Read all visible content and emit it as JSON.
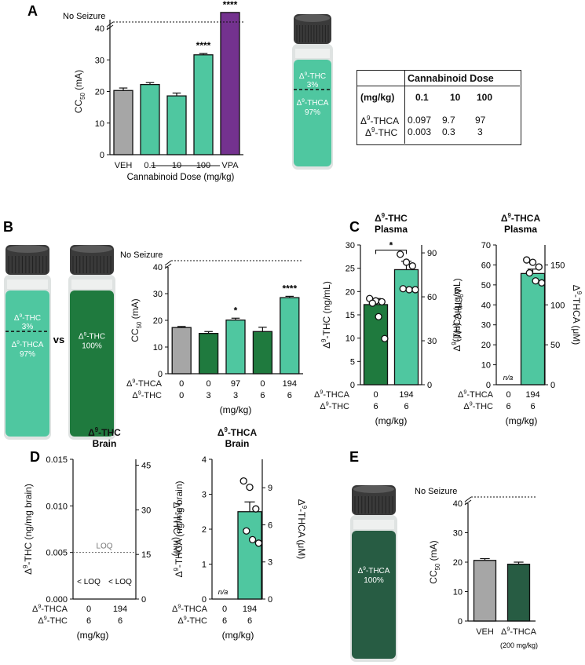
{
  "colors": {
    "veh": "#a6a6a6",
    "thca_light": "#4fc7a0",
    "thc_dark": "#1f7a3e",
    "vpa": "#74328f",
    "thca_pure_dark": "#275c43",
    "cap": "#3a3a3a"
  },
  "panels": {
    "A": {
      "letter": "A"
    },
    "B": {
      "letter": "B"
    },
    "C": {
      "letter": "C"
    },
    "D": {
      "letter": "D"
    },
    "E": {
      "letter": "E"
    }
  },
  "common": {
    "no_seizure": "No Seizure",
    "cc50_label": "CC50 (mA)",
    "mgkg": "(mg/kg)",
    "row_thca": "Δ9-THCA",
    "row_thc": "Δ9-THC",
    "vs": "vs",
    "loq": "LOQ",
    "below_loq": "< LOQ",
    "na": "n/a"
  },
  "vials": {
    "mix_top": "Δ9-THC",
    "mix_top_pct": "3%",
    "mix_bottom": "Δ9-THCA",
    "mix_bottom_pct": "97%",
    "pure_thc": "Δ9-THC",
    "pure_thc_pct": "100%",
    "pure_thca": "Δ9-THCA",
    "pure_thca_pct": "100%"
  },
  "table": {
    "header": "Cannabinoid Dose",
    "unit": "(mg/kg)",
    "doses": [
      "0.1",
      "10",
      "100"
    ],
    "rows": [
      {
        "label": "Δ9-THCA",
        "values": [
          "0.097",
          "9.7",
          "97"
        ]
      },
      {
        "label": "Δ9-THC",
        "values": [
          "0.003",
          "0.3",
          "3"
        ]
      }
    ]
  },
  "chart_data": [
    {
      "id": "A",
      "type": "bar",
      "ylabel": "CC50 (mA)",
      "xlabel": "Cannabinoid Dose (mg/kg)",
      "ylim": [
        0,
        40
      ],
      "yticks": [
        0,
        10,
        20,
        30,
        40
      ],
      "categories": [
        "VEH",
        "0.1",
        "10",
        "100",
        "VPA"
      ],
      "values": [
        20.3,
        22.2,
        18.6,
        31.6,
        45
      ],
      "errors": [
        0.8,
        0.6,
        0.9,
        0.4,
        0
      ],
      "significance": [
        "",
        "",
        "",
        "****",
        "****"
      ],
      "colors": [
        "veh",
        "thca_light",
        "thca_light",
        "thca_light",
        "vpa"
      ],
      "no_seizure_line": true
    },
    {
      "id": "B",
      "type": "bar",
      "ylabel": "CC50 (mA)",
      "ylim": [
        0,
        40
      ],
      "yticks": [
        0,
        10,
        20,
        30,
        40
      ],
      "categories_thca": [
        "0",
        "0",
        "97",
        "0",
        "194"
      ],
      "categories_thc": [
        "0",
        "3",
        "3",
        "6",
        "6"
      ],
      "values": [
        17.3,
        15.1,
        20.1,
        15.8,
        28.5
      ],
      "errors": [
        0.4,
        0.7,
        0.7,
        1.6,
        0.5
      ],
      "significance": [
        "",
        "",
        "*",
        "",
        "****"
      ],
      "colors": [
        "veh",
        "thc_dark",
        "thca_light",
        "thc_dark",
        "thca_light"
      ],
      "no_seizure_line": true
    },
    {
      "id": "C1",
      "type": "bar",
      "title": "Δ9-THC Plasma",
      "ylabel": "Δ9-THC (ng/mL)",
      "ylabel_right": "Δ9-THC (nM)",
      "ylim": [
        0,
        30
      ],
      "yticks": [
        0,
        5,
        10,
        15,
        20,
        25,
        30
      ],
      "yticks_right": [
        0,
        30,
        60,
        90
      ],
      "categories_thca": [
        "0",
        "194"
      ],
      "categories_thc": [
        "6",
        "6"
      ],
      "values": [
        17.2,
        24.7
      ],
      "errors": [
        1.3,
        1.8
      ],
      "points": [
        [
          18.5,
          18.0,
          17.8,
          17.5,
          14.6,
          9.9
        ],
        [
          28.0,
          26.3,
          25.5,
          20.6,
          20.4,
          20.4
        ]
      ],
      "colors": [
        "thc_dark",
        "thca_light"
      ],
      "bracket": "*"
    },
    {
      "id": "C2",
      "type": "bar",
      "title": "Δ9-THCA Plasma",
      "ylabel": "Δ9-THCA (μg/mL)",
      "ylabel_right": "Δ9-THCA (μM)",
      "ylim": [
        0,
        70
      ],
      "yticks": [
        0,
        10,
        20,
        30,
        40,
        50,
        60,
        70
      ],
      "yticks_right": [
        0,
        50,
        100,
        150
      ],
      "categories_thca": [
        "0",
        "194"
      ],
      "categories_thc": [
        "6",
        "6"
      ],
      "values": [
        0,
        55.7
      ],
      "errors": [
        0,
        2.2
      ],
      "points": [
        [],
        [
          62.5,
          61.3,
          59.0,
          56.0,
          52.0,
          51.0
        ]
      ],
      "colors": [
        "thca_light",
        "thca_light"
      ],
      "annotation": "n/a"
    },
    {
      "id": "D1",
      "type": "bar",
      "title": "Δ9-THC Brain",
      "ylabel": "Δ9-THC (ng/mg brain)",
      "ylabel_right": "Δ9-THC (nM)",
      "ylim": [
        0,
        0.015
      ],
      "yticks": [
        "0.000",
        "0.005",
        "0.010",
        "0.015"
      ],
      "yticks_right": [
        0,
        15,
        30,
        45
      ],
      "categories_thca": [
        "0",
        "194"
      ],
      "categories_thc": [
        "6",
        "6"
      ],
      "values": [
        0,
        0
      ],
      "loq": 0.005,
      "annotation": "< LOQ"
    },
    {
      "id": "D2",
      "type": "bar",
      "title": "Δ9-THCA Brain",
      "ylabel": "Δ9-THCA (ng/mg brain)",
      "ylabel_right": "Δ9-THCA (μM)",
      "ylim": [
        0,
        4
      ],
      "yticks": [
        0,
        1,
        2,
        3,
        4
      ],
      "yticks_right": [
        0,
        3,
        6,
        9
      ],
      "categories_thca": [
        "0",
        "194"
      ],
      "categories_thc": [
        "6",
        "6"
      ],
      "values": [
        0,
        2.5
      ],
      "errors": [
        0,
        0.28
      ],
      "points": [
        [],
        [
          3.38,
          3.2,
          2.58,
          1.95,
          1.7,
          1.6
        ]
      ],
      "colors": [
        "thca_light",
        "thca_light"
      ],
      "annotation": "n/a"
    },
    {
      "id": "E",
      "type": "bar",
      "ylabel": "CC50 (mA)",
      "ylim": [
        0,
        40
      ],
      "yticks": [
        0,
        10,
        20,
        30,
        40
      ],
      "categories": [
        "VEH",
        "Δ9-THCA"
      ],
      "sublabel": "(200 mg/kg)",
      "values": [
        20.6,
        19.3
      ],
      "errors": [
        0.6,
        0.7
      ],
      "colors": [
        "veh",
        "thca_pure_dark"
      ],
      "no_seizure_line": true
    }
  ]
}
